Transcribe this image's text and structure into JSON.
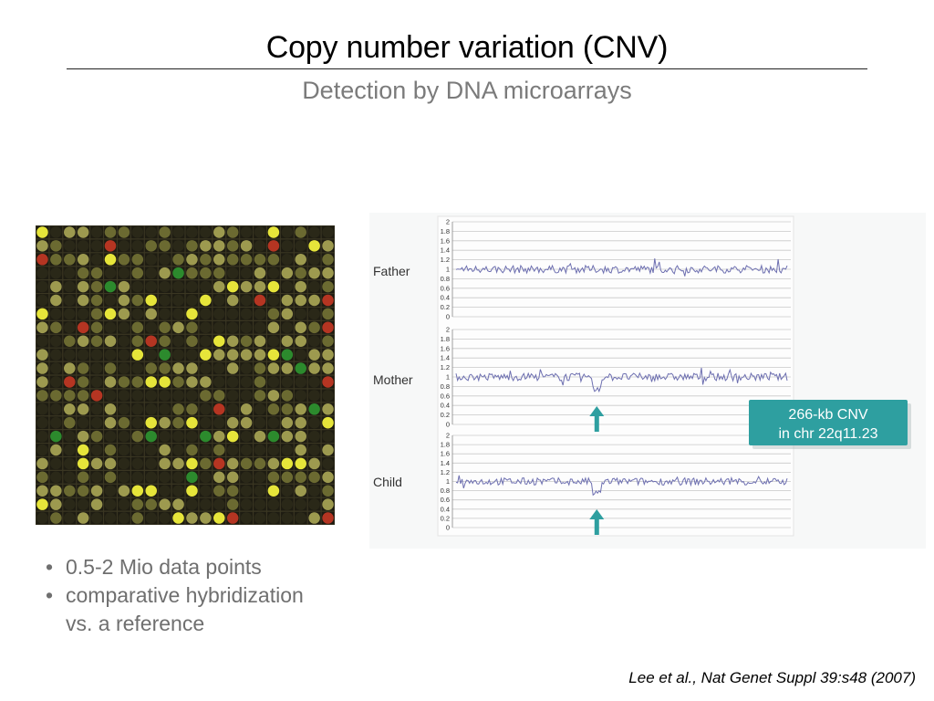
{
  "slide": {
    "title": "Copy number variation (CNV)",
    "subtitle": "Detection by DNA microarrays",
    "bullets": [
      {
        "text": "0.5-2 Mio data points"
      },
      {
        "text": "comparative hybridization vs. a reference"
      }
    ],
    "bullet_lines": [
      [
        "0.5-2 Mio data points"
      ],
      [
        "comparative hybridization",
        "vs. a reference"
      ]
    ],
    "bullet_glyph": "•",
    "citation": "Lee et al., Nat Genet Suppl 39:s48 (2007)",
    "microarray_image": {
      "description": "false-colour microarray spot image",
      "colors": [
        "#e6e53a",
        "#b4b05a",
        "#8c8c3e",
        "#d03a26",
        "#2f9e33",
        "#2b2a1a"
      ]
    },
    "callout": {
      "line1": "266-kb CNV",
      "line2": "in chr 22q11.23",
      "color": "#2e9fa0"
    },
    "arrow_color": "#2e9fa0"
  },
  "chart_data": {
    "type": "line",
    "y_ticks": [
      "2",
      "1.8",
      "1.6",
      "1.4",
      "1.2",
      "1",
      "0.8",
      "0.6",
      "0.4",
      "0.2",
      "0"
    ],
    "ylim": [
      0,
      2
    ],
    "series": [
      {
        "name": "Father",
        "baseline": 1.0,
        "dip": null
      },
      {
        "name": "Mother",
        "baseline": 1.0,
        "dip": {
          "start_frac": 0.41,
          "end_frac": 0.44,
          "value": 0.75
        }
      },
      {
        "name": "Child",
        "baseline": 1.0,
        "dip": {
          "start_frac": 0.41,
          "end_frac": 0.44,
          "value": 0.75
        }
      }
    ],
    "line_color": "#6d6fb0",
    "annotation": "266-kb CNV in chr 22q11.23"
  }
}
